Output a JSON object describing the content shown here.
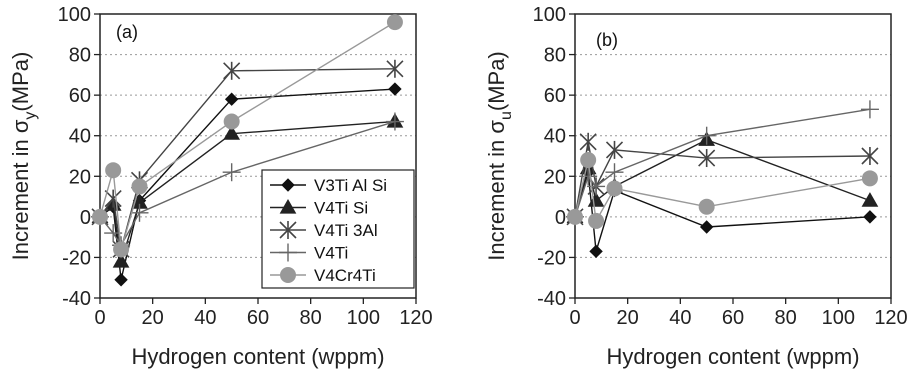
{
  "chart_data": [
    {
      "type": "line",
      "panel_label": "(a)",
      "xlabel": "Hydrogen content (wppm)",
      "ylabel": "Increment in σ",
      "ylabel_sub": "y",
      "ylabel_unit": "(MPa)",
      "xlim": [
        0,
        120
      ],
      "ylim": [
        -40,
        100
      ],
      "xticks": [
        0,
        20,
        40,
        60,
        80,
        100,
        120
      ],
      "yticks": [
        -40,
        -20,
        0,
        20,
        40,
        60,
        80,
        100
      ],
      "grid": "horizontal dotted",
      "legend_position": "lower-right",
      "series": [
        {
          "name": "V3Ti Al Si",
          "marker": "diamond",
          "color": "#111111",
          "x": [
            0,
            5,
            8,
            15,
            50,
            112
          ],
          "y": [
            0,
            5,
            -31,
            8,
            58,
            63
          ]
        },
        {
          "name": "V4Ti Si",
          "marker": "triangle",
          "color": "#222222",
          "x": [
            0,
            5,
            8,
            15,
            50,
            112
          ],
          "y": [
            0,
            6,
            -22,
            7,
            41,
            47
          ]
        },
        {
          "name": "V4Ti 3Al",
          "marker": "asterisk",
          "color": "#444444",
          "x": [
            0,
            5,
            8,
            15,
            50,
            112
          ],
          "y": [
            0,
            9,
            -16,
            18,
            72,
            73
          ]
        },
        {
          "name": "V4Ti",
          "marker": "plus",
          "color": "#666666",
          "x": [
            0,
            5,
            8,
            15,
            50,
            112
          ],
          "y": [
            0,
            -8,
            -14,
            2,
            22,
            47
          ]
        },
        {
          "name": "V4Cr4Ti",
          "marker": "circle",
          "color": "#999999",
          "x": [
            0,
            5,
            8,
            15,
            50,
            112
          ],
          "y": [
            0,
            23,
            -16,
            15,
            47,
            96
          ]
        }
      ]
    },
    {
      "type": "line",
      "panel_label": "(b)",
      "xlabel": "Hydrogen content (wppm)",
      "ylabel": "Increment in σ",
      "ylabel_sub": "u",
      "ylabel_unit": "(MPa)",
      "xlim": [
        0,
        120
      ],
      "ylim": [
        -40,
        100
      ],
      "xticks": [
        0,
        20,
        40,
        60,
        80,
        100,
        120
      ],
      "yticks": [
        -40,
        -20,
        0,
        20,
        40,
        60,
        80,
        100
      ],
      "grid": "horizontal dotted",
      "series": [
        {
          "name": "V3Ti Al Si",
          "marker": "diamond",
          "color": "#111111",
          "x": [
            0,
            5,
            8,
            15,
            50,
            112
          ],
          "y": [
            0,
            22,
            -17,
            13,
            -5,
            0
          ]
        },
        {
          "name": "V4Ti Si",
          "marker": "triangle",
          "color": "#222222",
          "x": [
            0,
            5,
            8,
            15,
            50,
            112
          ],
          "y": [
            0,
            24,
            8,
            15,
            38,
            8
          ]
        },
        {
          "name": "V4Ti 3Al",
          "marker": "asterisk",
          "color": "#444444",
          "x": [
            0,
            5,
            8,
            15,
            50,
            112
          ],
          "y": [
            0,
            37,
            15,
            33,
            29,
            30
          ]
        },
        {
          "name": "V4Ti",
          "marker": "plus",
          "color": "#666666",
          "x": [
            0,
            5,
            8,
            15,
            50,
            112
          ],
          "y": [
            0,
            20,
            15,
            22,
            40,
            53
          ]
        },
        {
          "name": "V4Cr4Ti",
          "marker": "circle",
          "color": "#999999",
          "x": [
            0,
            5,
            8,
            15,
            50,
            112
          ],
          "y": [
            0,
            28,
            -2,
            14,
            5,
            19
          ]
        }
      ]
    }
  ]
}
